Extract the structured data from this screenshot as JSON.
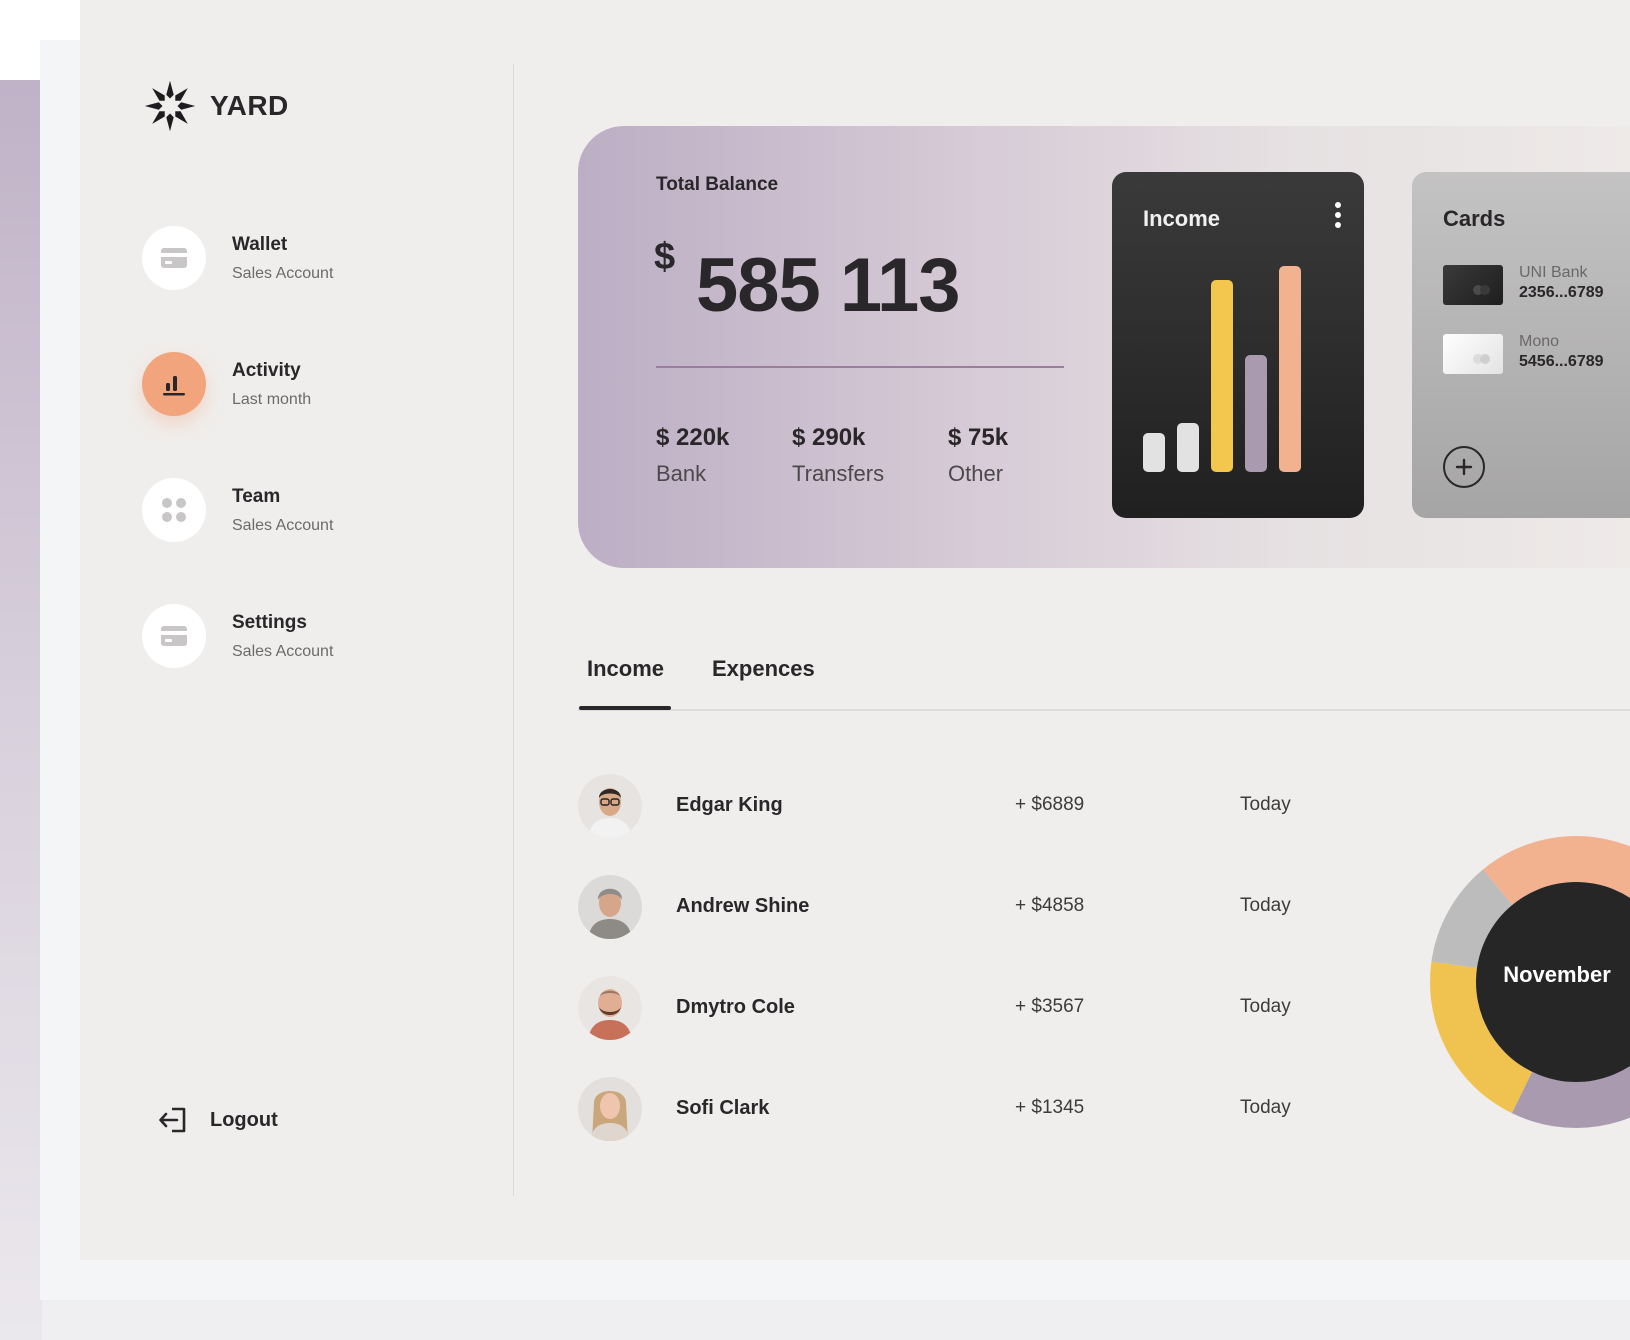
{
  "brand": {
    "name": "YARD"
  },
  "sidebar": {
    "items": [
      {
        "title": "Wallet",
        "subtitle": "Sales Account",
        "icon": "wallet-card-icon"
      },
      {
        "title": "Activity",
        "subtitle": "Last month",
        "icon": "bar-chart-icon",
        "active": true
      },
      {
        "title": "Team",
        "subtitle": "Sales Account",
        "icon": "four-dots-icon"
      },
      {
        "title": "Settings",
        "subtitle": "Sales Account",
        "icon": "card-icon"
      }
    ],
    "logout_label": "Logout"
  },
  "balance": {
    "label": "Total Balance",
    "currency": "$",
    "amount": "585 113",
    "stats": [
      {
        "value": "$ 220k",
        "label": "Bank"
      },
      {
        "value": "$ 290k",
        "label": "Transfers"
      },
      {
        "value": "$ 75k",
        "label": "Other"
      }
    ]
  },
  "income_card": {
    "title": "Income",
    "chart_data": {
      "type": "bar",
      "values": [
        0.19,
        0.24,
        0.93,
        0.57,
        1.0
      ],
      "colors": [
        "#e3e2e2",
        "#e3e2e2",
        "#f3c74e",
        "#a99ab0",
        "#f2b18f"
      ]
    }
  },
  "cards_panel": {
    "title": "Cards",
    "cards": [
      {
        "bank": "UNI Bank",
        "number": "2356...6789",
        "style": "dark"
      },
      {
        "bank": "Mono",
        "number": "5456...6789",
        "style": "light"
      }
    ]
  },
  "tabs": [
    {
      "label": "Income",
      "active": true
    },
    {
      "label": "Expences",
      "active": false
    }
  ],
  "transactions": [
    {
      "name": "Edgar King",
      "amount": "+ $6889",
      "date": "Today"
    },
    {
      "name": "Andrew Shine",
      "amount": "+ $4858",
      "date": "Today"
    },
    {
      "name": "Dmytro Cole",
      "amount": "+ $3567",
      "date": "Today"
    },
    {
      "name": "Sofi Clark",
      "amount": "+ $1345",
      "date": "Today"
    }
  ],
  "donut": {
    "label": "November",
    "segments": [
      {
        "color": "#f2b18f",
        "share": 0.25
      },
      {
        "color": "#a99ab0",
        "share": 0.33
      },
      {
        "color": "#f0c24f",
        "share": 0.17
      },
      {
        "color": "#bdbcbc",
        "share": 0.1
      }
    ]
  },
  "colors": {
    "accent_orange": "#f2a47c",
    "dark_card": "#262626",
    "balance_gradient_start": "#bcaec4"
  }
}
